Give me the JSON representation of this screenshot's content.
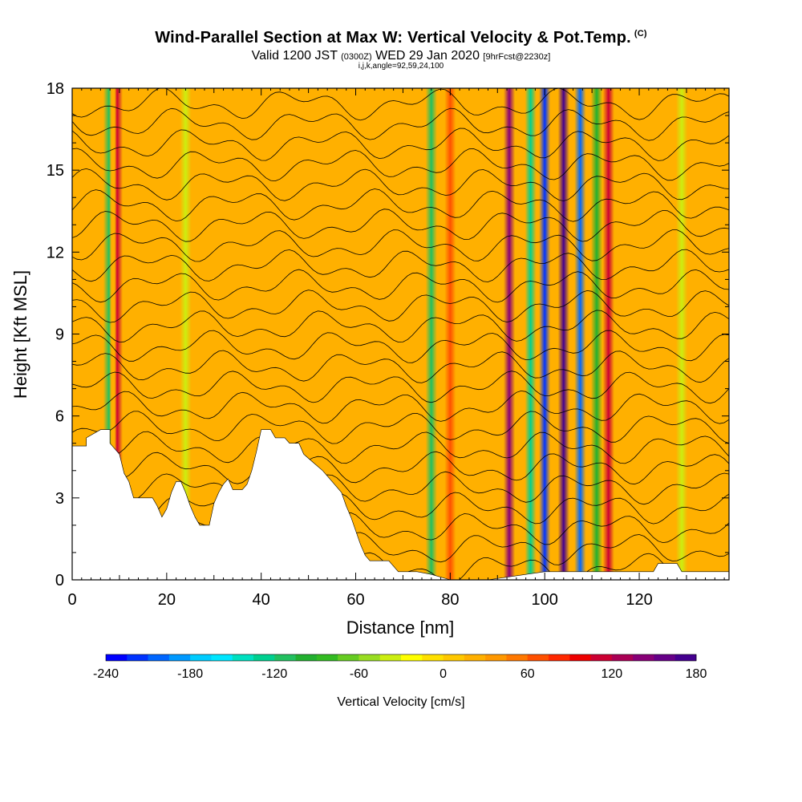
{
  "header": {
    "title": "Wind-Parallel Section at Max W: Vertical Velocity & Pot.Temp.",
    "copyright": "(C)",
    "valid_prefix": "Valid 1200 JST",
    "valid_utc": "(0300Z)",
    "valid_date": "WED 29 Jan 2020",
    "forecast": "[9hrFcst@2230z]",
    "params": "i,j,k,angle=92,59,24,100"
  },
  "chart_data": {
    "type": "heatmap",
    "title": "Wind-Parallel Section at Max W: Vertical Velocity & Pot.Temp.",
    "xlabel": "Distance [nm]",
    "ylabel": "Height [Kft MSL]",
    "xlim": [
      0,
      139
    ],
    "ylim": [
      0,
      18
    ],
    "x_ticks": [
      "0",
      "20",
      "40",
      "60",
      "80",
      "100",
      "120"
    ],
    "x_tick_values": [
      0,
      20,
      40,
      60,
      80,
      100,
      120
    ],
    "y_ticks": [
      "0",
      "3",
      "6",
      "9",
      "12",
      "15",
      "18"
    ],
    "y_tick_values": [
      0,
      3,
      6,
      9,
      12,
      15,
      18
    ],
    "colorbar": {
      "label": "Vertical Velocity [cm/s]",
      "range": [
        -240,
        180
      ],
      "step": 15,
      "tick_labels": [
        "-240",
        "-180",
        "-120",
        "-60",
        "0",
        "60",
        "120",
        "180"
      ],
      "tick_values": [
        -240,
        -180,
        -120,
        -60,
        0,
        60,
        120,
        180
      ],
      "colors": [
        "#0000ff",
        "#0033ff",
        "#0066ff",
        "#0099ff",
        "#00ccff",
        "#00e6ff",
        "#00e0c0",
        "#00d090",
        "#22c060",
        "#22b030",
        "#33bb22",
        "#66cc22",
        "#99dd22",
        "#ccee11",
        "#ffff00",
        "#ffe000",
        "#ffc800",
        "#ffb000",
        "#ff9800",
        "#ff7800",
        "#ff5000",
        "#ff2800",
        "#ee0000",
        "#cc0033",
        "#aa0055",
        "#880077",
        "#660088",
        "#44008f"
      ]
    },
    "terrain_kft": [
      [
        0,
        4.9
      ],
      [
        3,
        4.9
      ],
      [
        3,
        5.2
      ],
      [
        6,
        5.5
      ],
      [
        8,
        5.5
      ],
      [
        8,
        5.0
      ],
      [
        10,
        4.6
      ],
      [
        11,
        3.9
      ],
      [
        12,
        3.6
      ],
      [
        13,
        3.0
      ],
      [
        17,
        3.0
      ],
      [
        18,
        2.7
      ],
      [
        19,
        2.3
      ],
      [
        20,
        2.6
      ],
      [
        21,
        3.2
      ],
      [
        22,
        3.6
      ],
      [
        23,
        3.6
      ],
      [
        24,
        3.2
      ],
      [
        25,
        2.7
      ],
      [
        26,
        2.3
      ],
      [
        27,
        2.0
      ],
      [
        29,
        2.0
      ],
      [
        30,
        2.8
      ],
      [
        31,
        3.2
      ],
      [
        32,
        3.5
      ],
      [
        33,
        3.7
      ],
      [
        34,
        3.3
      ],
      [
        36,
        3.3
      ],
      [
        37,
        3.5
      ],
      [
        38,
        4.0
      ],
      [
        39,
        4.7
      ],
      [
        40,
        5.5
      ],
      [
        42,
        5.5
      ],
      [
        43,
        5.2
      ],
      [
        45,
        5.2
      ],
      [
        46,
        5.0
      ],
      [
        48,
        5.0
      ],
      [
        49,
        4.6
      ],
      [
        51,
        4.3
      ],
      [
        53,
        4.0
      ],
      [
        55,
        3.6
      ],
      [
        57,
        3.2
      ],
      [
        58,
        2.7
      ],
      [
        59,
        2.3
      ],
      [
        60,
        1.8
      ],
      [
        61,
        1.3
      ],
      [
        62,
        0.9
      ],
      [
        63,
        0.7
      ],
      [
        67,
        0.7
      ],
      [
        69,
        0.3
      ],
      [
        73,
        0.3
      ],
      [
        76,
        0.2
      ],
      [
        80,
        0.0
      ],
      [
        88,
        0.0
      ],
      [
        100,
        0.3
      ],
      [
        110,
        0.3
      ],
      [
        123,
        0.3
      ],
      [
        124,
        0.6
      ],
      [
        128,
        0.6
      ],
      [
        129,
        0.3
      ],
      [
        139,
        0.3
      ]
    ],
    "vertical_velocity_features_cm_s": [
      {
        "x": 9.5,
        "value": 110
      },
      {
        "x": 7.8,
        "value": -110
      },
      {
        "x": 24,
        "value": -40
      },
      {
        "x": 76,
        "value": -115
      },
      {
        "x": 80,
        "value": 70
      },
      {
        "x": 92.5,
        "value": 135
      },
      {
        "x": 97,
        "value": -130
      },
      {
        "x": 100,
        "value": -225
      },
      {
        "x": 104,
        "value": 175
      },
      {
        "x": 107.5,
        "value": -200
      },
      {
        "x": 111,
        "value": -100
      },
      {
        "x": 113.5,
        "value": 110
      },
      {
        "x": 129,
        "value": -40
      }
    ],
    "potential_temperature_contours": {
      "count": 24,
      "y_start_kft": 0.4,
      "y_step_kft": 0.74
    }
  }
}
